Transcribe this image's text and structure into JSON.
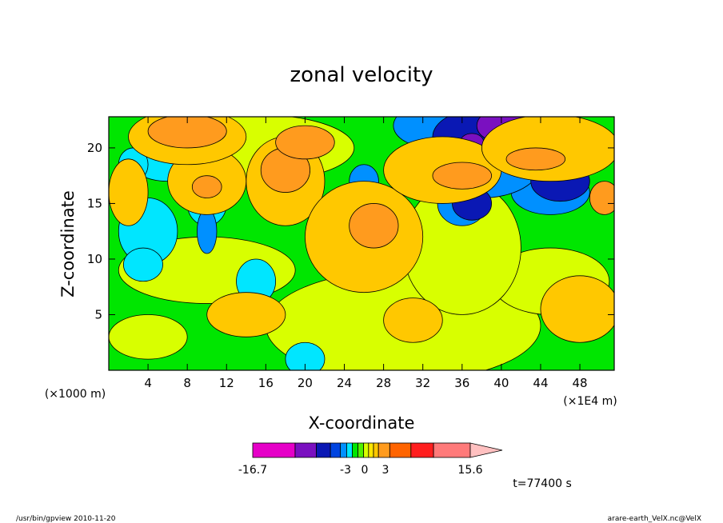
{
  "chart_data": {
    "type": "heatmap",
    "title": "zonal velocity",
    "xlabel": "X-coordinate",
    "ylabel": "Z-coordinate",
    "x_unit_label": "(×1E4 m)",
    "y_unit_label": "(×1000 m)",
    "x_range": [
      0,
      51.5
    ],
    "y_range": [
      0,
      22.8
    ],
    "x_ticks": [
      4,
      8,
      12,
      16,
      20,
      24,
      28,
      32,
      36,
      40,
      44,
      48
    ],
    "y_ticks": [
      5,
      10,
      15,
      20
    ],
    "colorbar": {
      "min_label": "-16.7",
      "max_label": "15.6",
      "center_labels": [
        "-3",
        "0",
        "3"
      ],
      "colors": [
        "#e600c8",
        "#7a10c0",
        "#0a18b4",
        "#0044e0",
        "#0090ff",
        "#00e6ff",
        "#00e600",
        "#50f000",
        "#d8ff00",
        "#ffe600",
        "#ffc800",
        "#ff9b1e",
        "#ff6400",
        "#ff1e1e",
        "#ff7a7a",
        "#ffc0c0"
      ],
      "widths": [
        3,
        1.5,
        1,
        0.7,
        0.45,
        0.4,
        0.4,
        0.4,
        0.35,
        0.35,
        0.35,
        0.8,
        1.5,
        1.6,
        2.6,
        2.6
      ]
    },
    "fields": [
      {
        "level": 0.35,
        "color": "#00e6ff",
        "blobs": [
          [
            4,
            12.5,
            3,
            3
          ],
          [
            6,
            19,
            4,
            2
          ],
          [
            10,
            15,
            2,
            2
          ],
          [
            15,
            8,
            2,
            2
          ],
          [
            20,
            1,
            2,
            1.5
          ],
          [
            3.5,
            9.5,
            2,
            1.5
          ],
          [
            2.5,
            18.5,
            1.5,
            1.5
          ]
        ]
      },
      {
        "level": 0.5,
        "color": "#0090ff",
        "blobs": [
          [
            10,
            12.5,
            1,
            2
          ],
          [
            36,
            15,
            2.5,
            2
          ],
          [
            45,
            16,
            4,
            2
          ],
          [
            38,
            18.5,
            6,
            3
          ],
          [
            33,
            22,
            4,
            2
          ],
          [
            26,
            17,
            1.5,
            1.5
          ]
        ]
      },
      {
        "level": 0.5,
        "color": "#0a18b4",
        "blobs": [
          [
            38,
            21,
            5,
            2.5
          ],
          [
            37,
            15,
            2,
            1.5
          ],
          [
            46,
            17,
            3,
            1.8
          ]
        ]
      },
      {
        "level": 0.5,
        "color": "#7a10c0",
        "blobs": [
          [
            40,
            22,
            2.5,
            1.5
          ],
          [
            37,
            20.5,
            1.2,
            0.8
          ]
        ]
      },
      {
        "level": 0.45,
        "color": "#ffc800",
        "blobs": [
          [
            18,
            17,
            4,
            4
          ],
          [
            26,
            12,
            6,
            5
          ],
          [
            34,
            18,
            6,
            3
          ],
          [
            10,
            17,
            4,
            3
          ],
          [
            45,
            20,
            7,
            3
          ],
          [
            2,
            16,
            2,
            3
          ],
          [
            48,
            5.5,
            4,
            3
          ],
          [
            14,
            5,
            4,
            2
          ],
          [
            31,
            4.5,
            3,
            2
          ],
          [
            8,
            21,
            6,
            2.5
          ]
        ]
      },
      {
        "level": 0.5,
        "color": "#ff9b1e",
        "blobs": [
          [
            18,
            18,
            2.5,
            2
          ],
          [
            27,
            13,
            2.5,
            2
          ],
          [
            36,
            17.5,
            3,
            1.2
          ],
          [
            43.5,
            19,
            3,
            1
          ],
          [
            10,
            16.5,
            1.5,
            1
          ],
          [
            20,
            20.5,
            3,
            1.5
          ],
          [
            8,
            21.5,
            4,
            1.5
          ],
          [
            50.5,
            15.5,
            1.5,
            1.5
          ]
        ]
      }
    ],
    "base_fields": [
      {
        "level": 0.45,
        "color": "#d8ff00",
        "blobs": [
          [
            30,
            4,
            14,
            5
          ],
          [
            10,
            9,
            9,
            3
          ],
          [
            45,
            8,
            6,
            3
          ],
          [
            36,
            11,
            6,
            6
          ],
          [
            4,
            3,
            4,
            2
          ],
          [
            15,
            20,
            10,
            3
          ]
        ]
      }
    ],
    "green_bg": "#00e600"
  },
  "footer": {
    "time_label": "t=77400 s",
    "left_note": "/usr/bin/gpview   2010-11-20",
    "right_note": "arare-earth_VelX.nc@VelX"
  }
}
